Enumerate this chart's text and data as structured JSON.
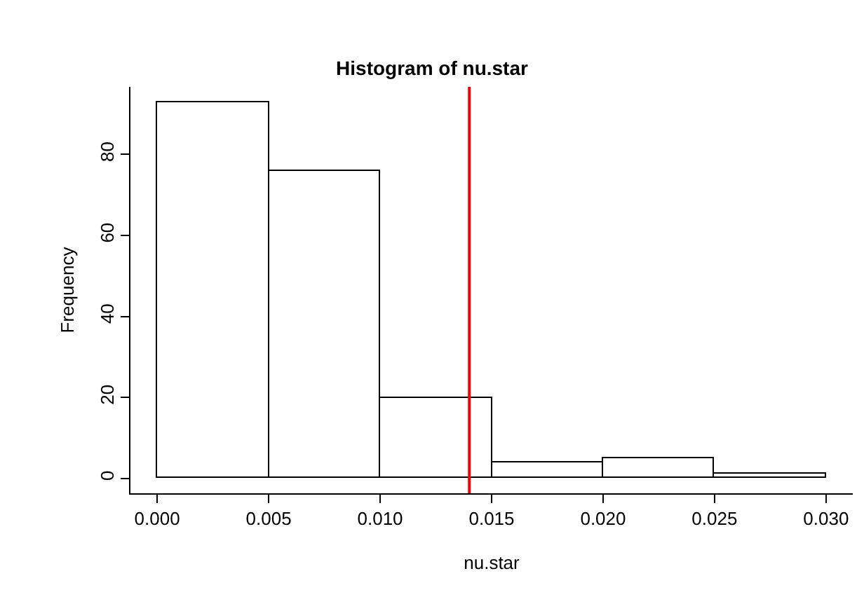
{
  "chart_data": {
    "type": "histogram",
    "title": "Histogram of nu.star",
    "xlabel": "nu.star",
    "ylabel": "Frequency",
    "bins": [
      0,
      0.005,
      0.01,
      0.015,
      0.02,
      0.025,
      0.03
    ],
    "values": [
      93,
      76,
      20,
      4,
      5,
      1
    ],
    "color": "#ffffff",
    "xlim": [
      -0.0012,
      0.0312
    ],
    "xticks": [
      {
        "value": 0,
        "label": "0.000"
      },
      {
        "value": 0.005,
        "label": "0.005"
      },
      {
        "value": 0.01,
        "label": "0.010"
      },
      {
        "value": 0.015,
        "label": "0.015"
      },
      {
        "value": 0.02,
        "label": "0.020"
      },
      {
        "value": 0.025,
        "label": "0.025"
      },
      {
        "value": 0.03,
        "label": "0.030"
      }
    ],
    "ylim": [
      -3.7,
      96.7
    ],
    "yticks": [
      0,
      20,
      40,
      60,
      80
    ],
    "ref_lines": [
      {
        "axis": "x",
        "value": 0.014,
        "color": "#ff0000"
      }
    ],
    "legend": false
  }
}
